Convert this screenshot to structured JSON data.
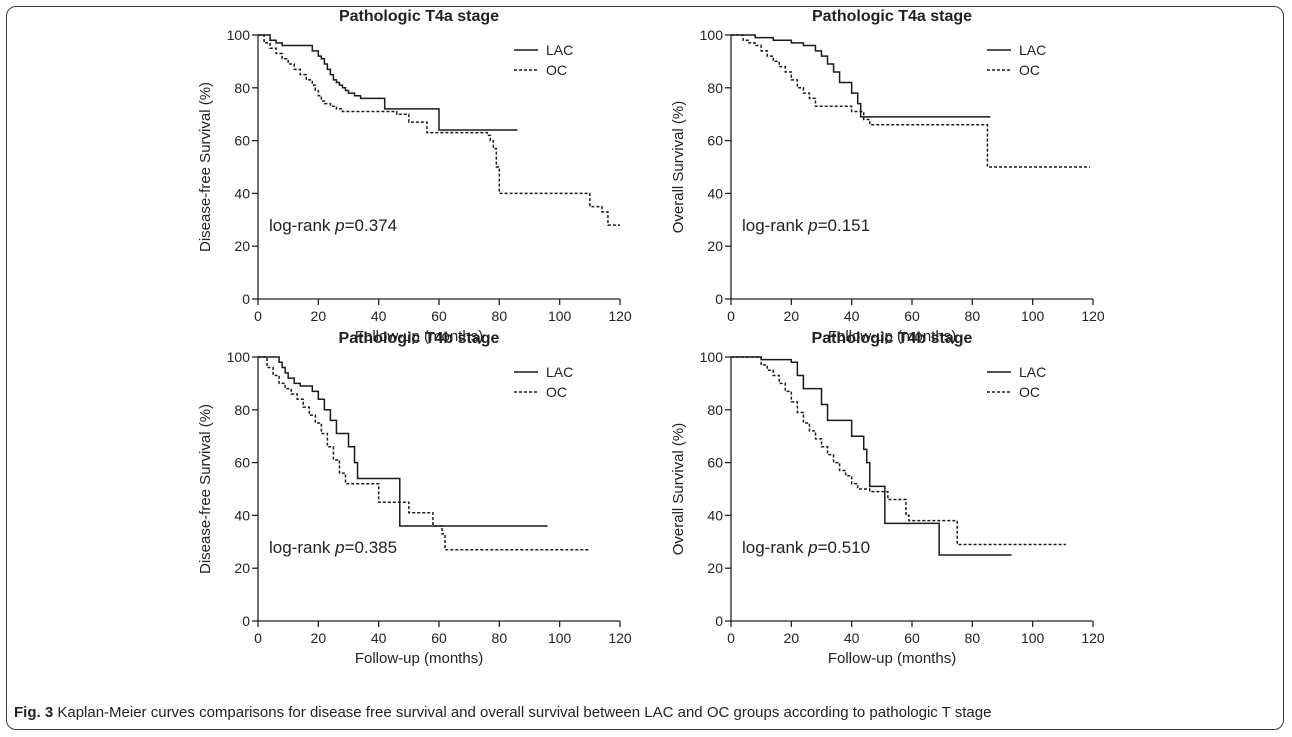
{
  "figure": {
    "caption_label": "Fig. 3",
    "caption_text": "Kaplan-Meier curves comparisons for disease free survival and overall survival between LAC and OC groups according to pathologic T stage"
  },
  "chart_data": [
    {
      "type": "line",
      "title": "Pathologic T4a stage",
      "xlabel": "Follow-up (months)",
      "ylabel": "Disease-free Survival (%)",
      "xlim": [
        0,
        120
      ],
      "ylim": [
        0,
        100
      ],
      "xticks": [
        0,
        20,
        40,
        60,
        80,
        100,
        120
      ],
      "yticks": [
        0,
        20,
        40,
        60,
        80,
        100
      ],
      "grid": false,
      "legend": "top-right",
      "annotation": {
        "prefix": "log-rank ",
        "p_symbol": "p",
        "value": "=0.374"
      },
      "series": [
        {
          "name": "LAC",
          "style": "solid",
          "x": [
            0,
            4,
            6,
            8,
            18,
            20,
            21,
            22,
            23,
            24,
            25,
            26,
            27,
            28,
            29,
            30,
            32,
            34,
            42,
            60,
            86
          ],
          "y": [
            100,
            98,
            97,
            96,
            94,
            92,
            91,
            89,
            87,
            85,
            83,
            82,
            81,
            80,
            79,
            78,
            77,
            76,
            72,
            64,
            64
          ]
        },
        {
          "name": "OC",
          "style": "dashed",
          "x": [
            0,
            2,
            4,
            6,
            8,
            10,
            12,
            14,
            16,
            18,
            19,
            20,
            21,
            22,
            24,
            26,
            28,
            46,
            50,
            56,
            76,
            77,
            78,
            79,
            80,
            110,
            114,
            116,
            120
          ],
          "y": [
            100,
            97,
            95,
            93,
            91,
            89,
            87,
            85,
            83,
            81,
            79,
            77,
            75,
            74,
            73,
            72,
            71,
            70,
            67,
            63,
            62,
            60,
            57,
            50,
            40,
            35,
            33,
            28,
            28
          ]
        }
      ]
    },
    {
      "type": "line",
      "title": "Pathologic T4a stage",
      "xlabel": "Follow-up (months)",
      "ylabel": "Overall Survival (%)",
      "xlim": [
        0,
        120
      ],
      "ylim": [
        0,
        100
      ],
      "xticks": [
        0,
        20,
        40,
        60,
        80,
        100,
        120
      ],
      "yticks": [
        0,
        20,
        40,
        60,
        80,
        100
      ],
      "grid": false,
      "legend": "top-right",
      "annotation": {
        "prefix": "log-rank ",
        "p_symbol": "p",
        "value": "=0.151"
      },
      "series": [
        {
          "name": "LAC",
          "style": "solid",
          "x": [
            0,
            8,
            14,
            20,
            24,
            28,
            30,
            32,
            34,
            36,
            40,
            42,
            43,
            86
          ],
          "y": [
            100,
            99,
            98,
            97,
            96,
            94,
            92,
            89,
            86,
            82,
            78,
            74,
            69,
            69
          ]
        },
        {
          "name": "OC",
          "style": "dashed",
          "x": [
            0,
            4,
            6,
            8,
            10,
            12,
            14,
            16,
            18,
            20,
            22,
            24,
            26,
            28,
            40,
            44,
            46,
            84,
            85,
            119
          ],
          "y": [
            100,
            98,
            97,
            96,
            94,
            92,
            90,
            88,
            86,
            83,
            80,
            78,
            76,
            73,
            71,
            68,
            66,
            66,
            50,
            50
          ]
        }
      ]
    },
    {
      "type": "line",
      "title": "Pathologic T4b stage",
      "xlabel": "Follow-up (months)",
      "ylabel": "Disease-free Survival (%)",
      "xlim": [
        0,
        120
      ],
      "ylim": [
        0,
        100
      ],
      "xticks": [
        0,
        20,
        40,
        60,
        80,
        100,
        120
      ],
      "yticks": [
        0,
        20,
        40,
        60,
        80,
        100
      ],
      "grid": false,
      "legend": "top-right",
      "annotation": {
        "prefix": "log-rank ",
        "p_symbol": "p",
        "value": "=0.385"
      },
      "series": [
        {
          "name": "LAC",
          "style": "solid",
          "x": [
            0,
            7,
            8,
            9,
            10,
            12,
            14,
            18,
            20,
            22,
            24,
            26,
            30,
            32,
            33,
            46,
            47,
            96
          ],
          "y": [
            100,
            98,
            96,
            94,
            92,
            90,
            89,
            87,
            84,
            80,
            76,
            71,
            66,
            60,
            54,
            54,
            36,
            36
          ]
        },
        {
          "name": "OC",
          "style": "dashed",
          "x": [
            0,
            3,
            5,
            7,
            9,
            11,
            13,
            15,
            17,
            19,
            21,
            23,
            25,
            27,
            29,
            40,
            50,
            58,
            61,
            62,
            110
          ],
          "y": [
            100,
            96,
            93,
            90,
            88,
            86,
            84,
            81,
            78,
            75,
            71,
            66,
            61,
            56,
            52,
            45,
            41,
            36,
            33,
            27,
            27
          ]
        }
      ]
    },
    {
      "type": "line",
      "title": "Pathologic T4b stage",
      "xlabel": "Follow-up (months)",
      "ylabel": "Overall Survival (%)",
      "xlim": [
        0,
        120
      ],
      "ylim": [
        0,
        100
      ],
      "xticks": [
        0,
        20,
        40,
        60,
        80,
        100,
        120
      ],
      "yticks": [
        0,
        20,
        40,
        60,
        80,
        100
      ],
      "grid": false,
      "legend": "top-right",
      "annotation": {
        "prefix": "log-rank ",
        "p_symbol": "p",
        "value": "=0.510"
      },
      "series": [
        {
          "name": "LAC",
          "style": "solid",
          "x": [
            0,
            10,
            20,
            22,
            24,
            30,
            32,
            36,
            40,
            44,
            45,
            46,
            50,
            51,
            68,
            69,
            93
          ],
          "y": [
            100,
            99,
            98,
            93,
            88,
            82,
            76,
            76,
            70,
            65,
            60,
            51,
            51,
            37,
            37,
            25,
            25
          ]
        },
        {
          "name": "OC",
          "style": "dashed",
          "x": [
            0,
            10,
            12,
            14,
            16,
            18,
            20,
            22,
            24,
            26,
            28,
            30,
            32,
            34,
            36,
            38,
            40,
            42,
            46,
            52,
            58,
            59,
            74,
            75,
            111
          ],
          "y": [
            100,
            97,
            95,
            93,
            90,
            87,
            83,
            79,
            75,
            72,
            69,
            66,
            63,
            60,
            57,
            55,
            52,
            50,
            49,
            46,
            40,
            38,
            38,
            29,
            29
          ]
        }
      ]
    }
  ]
}
